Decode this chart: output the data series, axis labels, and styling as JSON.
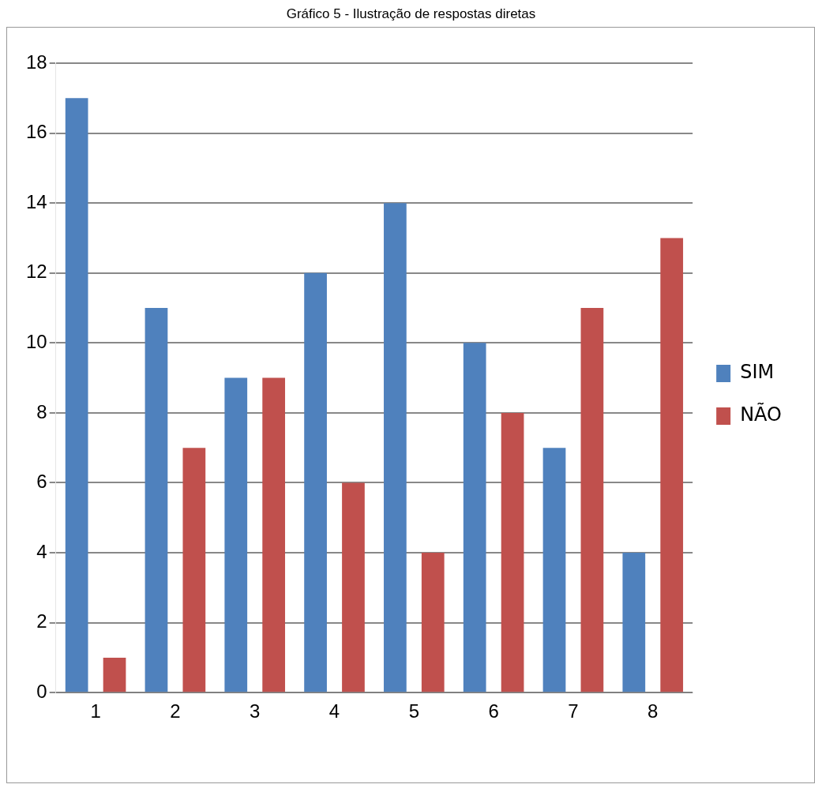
{
  "chart_data": {
    "type": "bar",
    "title": "Gráfico 5 - Ilustração de respostas diretas",
    "categories": [
      "1",
      "2",
      "3",
      "4",
      "5",
      "6",
      "7",
      "8"
    ],
    "series": [
      {
        "name": "SIM",
        "color": "#4f81bd",
        "values": [
          17,
          11,
          9,
          12,
          14,
          10,
          7,
          4
        ]
      },
      {
        "name": "NÃO",
        "color": "#c0504d",
        "values": [
          1,
          7,
          9,
          6,
          4,
          8,
          11,
          13
        ]
      }
    ],
    "ylim": [
      0,
      18
    ],
    "yticks": [
      0,
      2,
      4,
      6,
      8,
      10,
      12,
      14,
      16,
      18
    ],
    "grid": "y",
    "legend": "right"
  }
}
